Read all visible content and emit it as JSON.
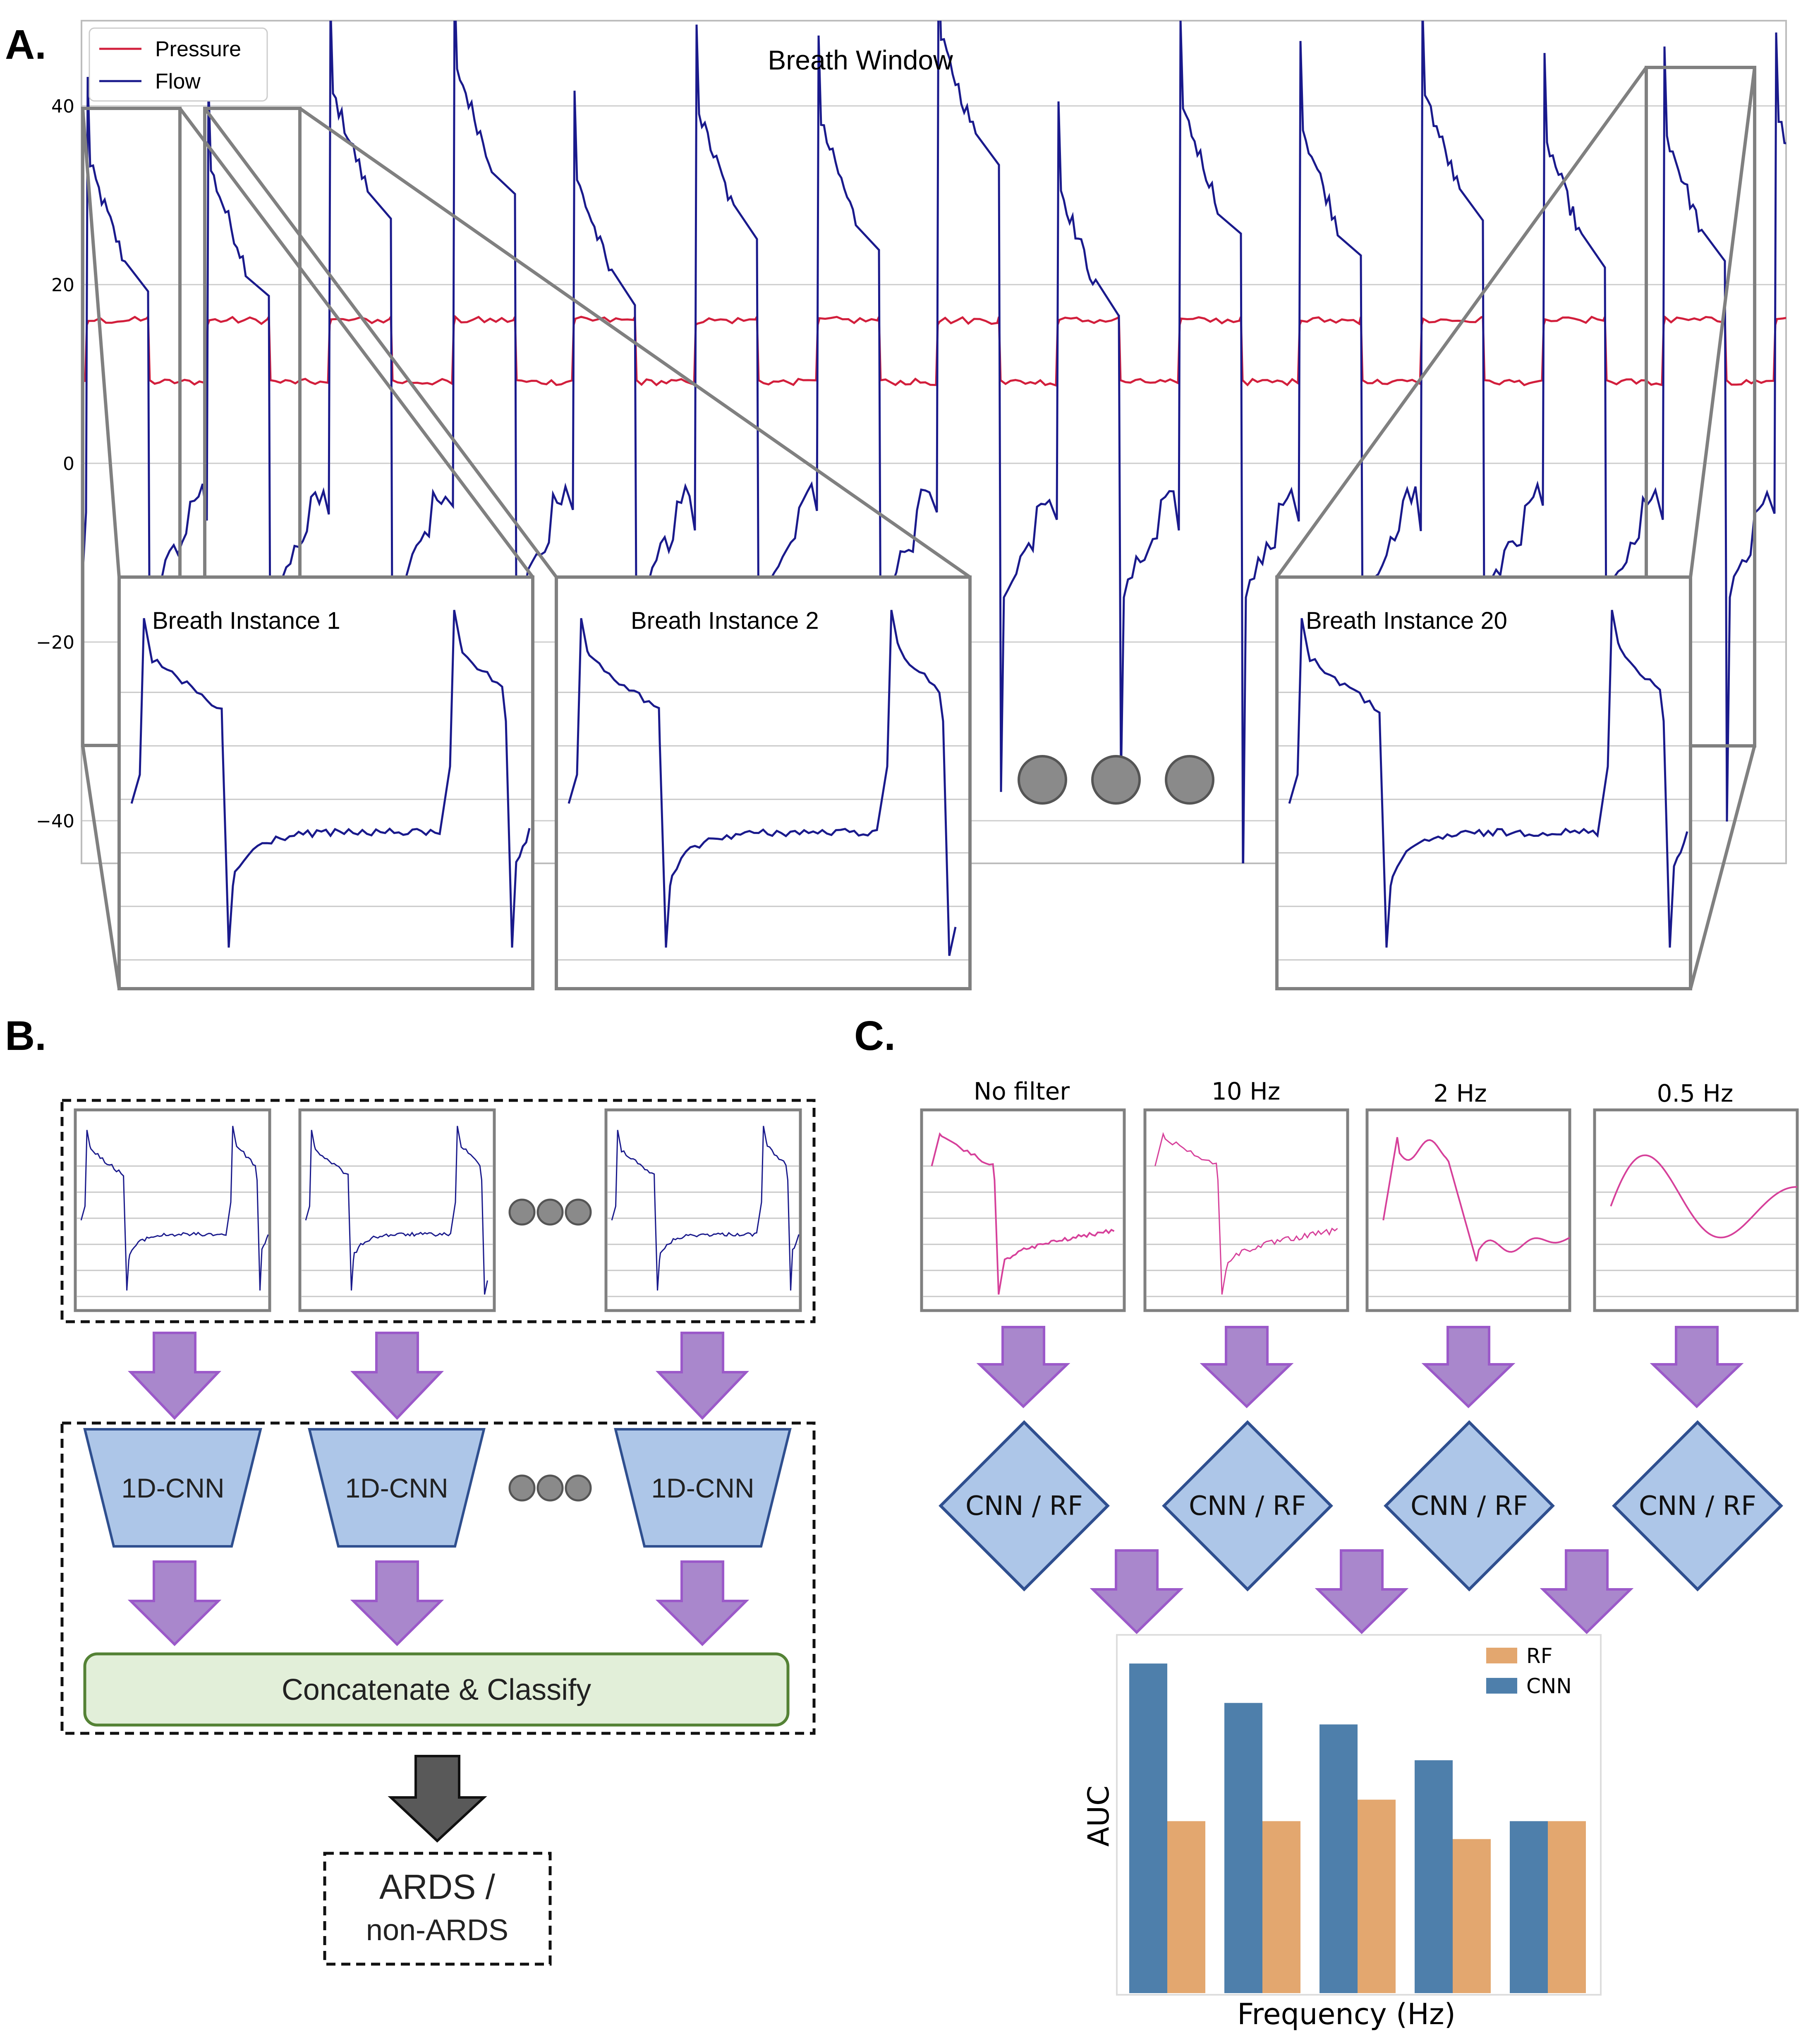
{
  "panels": {
    "a_letter": "A.",
    "b_letter": "B.",
    "c_letter": "C."
  },
  "panel_a": {
    "title": "Breath Window",
    "legend": {
      "pressure": "Pressure",
      "flow": "Flow"
    },
    "y_ticks": [
      "40",
      "20",
      "0",
      "−20",
      "−40"
    ],
    "instances": [
      "Breath Instance 1",
      "Breath Instance 2",
      "Breath Instance 20"
    ],
    "ellipsis_dots": 3
  },
  "panel_b": {
    "cnn_label": "1D-CNN",
    "concat_label": "Concatenate & Classify",
    "output_line1": "ARDS /",
    "output_line2": "non-ARDS"
  },
  "panel_c": {
    "filters": [
      "No filter",
      "10 Hz",
      "2 Hz",
      "0.5 Hz"
    ],
    "model_label": "CNN / RF"
  },
  "chart_data": {
    "type": "bar",
    "categories": [
      "",
      "",
      "",
      "",
      ""
    ],
    "series": [
      {
        "name": "CNN",
        "values": [
          0.92,
          0.81,
          0.75,
          0.65,
          0.48
        ]
      },
      {
        "name": "RF",
        "values": [
          0.48,
          0.48,
          0.54,
          0.43,
          0.48
        ]
      }
    ],
    "xlabel": "Frequency (Hz)",
    "ylabel": "AUC",
    "legend_position": "top-right",
    "colors": {
      "CNN": "#4e7fab",
      "RF": "#e3a76f"
    }
  },
  "colors": {
    "pressure": "#d21f3c",
    "flow": "#1a1a8c",
    "filtered": "#d6409a",
    "arrow_purple": "#a987cc",
    "arrow_border": "#9b59c9",
    "block_blue": "#adc6e8",
    "block_border": "#2f4f8f",
    "concat_fill": "#e2efd9",
    "concat_border": "#548235",
    "dark_arrow": "#595959"
  }
}
